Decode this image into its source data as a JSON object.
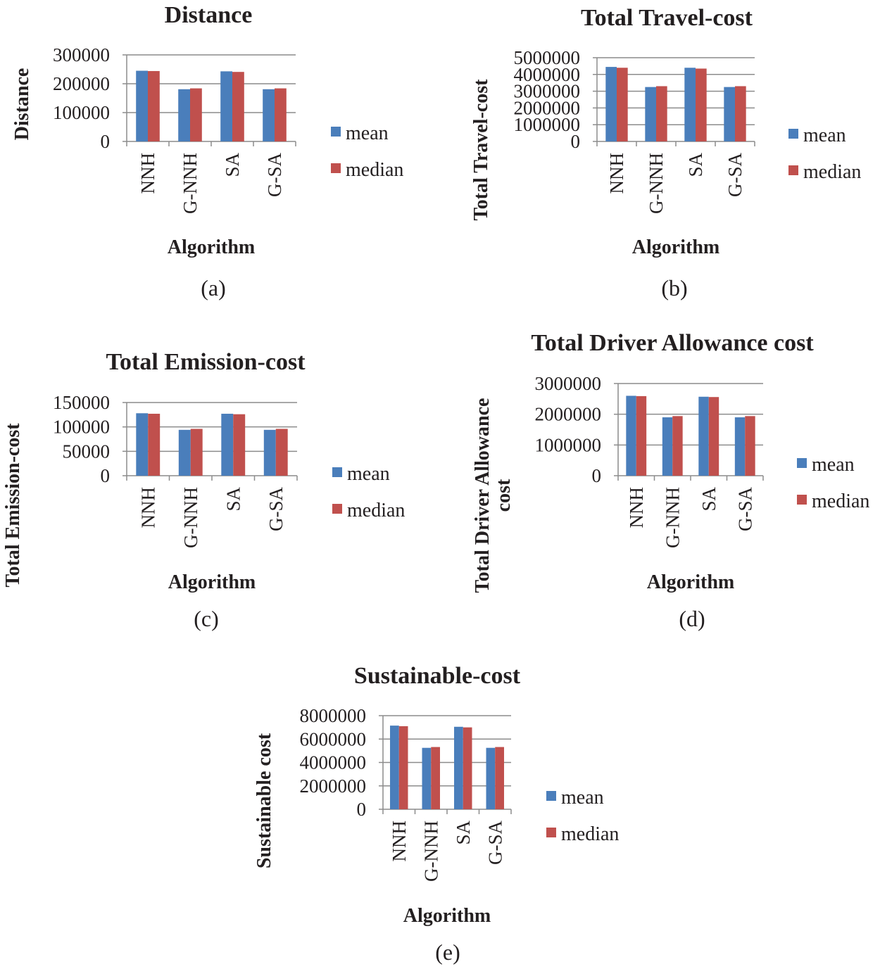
{
  "figure": {
    "legend_labels": [
      "mean",
      "median"
    ],
    "series_colors": [
      "#4a7ebb",
      "#c0504d"
    ]
  },
  "chart_data": [
    {
      "type": "bar",
      "id": "a",
      "title": "Distance",
      "xlabel": "Algorithm",
      "ylabel": [
        "Distance"
      ],
      "caption": "(a)",
      "categories": [
        "NNH",
        "G-NNH",
        "SA",
        "G-SA"
      ],
      "yticks": [
        0,
        100000,
        200000,
        300000
      ],
      "ylim": [
        0,
        300000
      ],
      "series": [
        {
          "name": "mean",
          "values": [
            245000,
            181000,
            243000,
            181000
          ]
        },
        {
          "name": "median",
          "values": [
            244000,
            184000,
            241000,
            184000
          ]
        }
      ]
    },
    {
      "type": "bar",
      "id": "b",
      "title": "Total Travel-cost",
      "xlabel": "Algorithm",
      "ylabel": [
        "Total Travel-cost"
      ],
      "caption": "(b)",
      "categories": [
        "NNH",
        "G-NNH",
        "SA",
        "G-SA"
      ],
      "yticks": [
        0,
        1000000,
        2000000,
        3000000,
        4000000,
        5000000
      ],
      "ylim": [
        0,
        5000000
      ],
      "series": [
        {
          "name": "mean",
          "values": [
            4450000,
            3250000,
            4400000,
            3250000
          ]
        },
        {
          "name": "median",
          "values": [
            4400000,
            3300000,
            4350000,
            3300000
          ]
        }
      ]
    },
    {
      "type": "bar",
      "id": "c",
      "title": "Total Emission-cost",
      "xlabel": "Algorithm",
      "ylabel": [
        "Total Emission-cost"
      ],
      "caption": "(c)",
      "categories": [
        "NNH",
        "G-NNH",
        "SA",
        "G-SA"
      ],
      "yticks": [
        0,
        50000,
        100000,
        150000
      ],
      "ylim": [
        0,
        150000
      ],
      "series": [
        {
          "name": "mean",
          "values": [
            128000,
            94000,
            127000,
            94000
          ]
        },
        {
          "name": "median",
          "values": [
            127000,
            96000,
            126000,
            96000
          ]
        }
      ]
    },
    {
      "type": "bar",
      "id": "d",
      "title": "Total Driver Allowance cost",
      "xlabel": "Algorithm",
      "ylabel": [
        "Total Driver Allowance",
        "cost"
      ],
      "caption": "(d)",
      "categories": [
        "NNH",
        "G-NNH",
        "SA",
        "G-SA"
      ],
      "yticks": [
        0,
        1000000,
        2000000,
        3000000
      ],
      "ylim": [
        0,
        3000000
      ],
      "series": [
        {
          "name": "mean",
          "values": [
            2600000,
            1900000,
            2570000,
            1900000
          ]
        },
        {
          "name": "median",
          "values": [
            2590000,
            1940000,
            2560000,
            1940000
          ]
        }
      ]
    },
    {
      "type": "bar",
      "id": "e",
      "title": "Sustainable-cost",
      "xlabel": "Algorithm",
      "ylabel": [
        "Sustainable cost"
      ],
      "caption": "(e)",
      "categories": [
        "NNH",
        "G-NNH",
        "SA",
        "G-SA"
      ],
      "yticks": [
        0,
        2000000,
        4000000,
        6000000,
        8000000
      ],
      "ylim": [
        0,
        8000000
      ],
      "series": [
        {
          "name": "mean",
          "values": [
            7150000,
            5250000,
            7050000,
            5250000
          ]
        },
        {
          "name": "median",
          "values": [
            7100000,
            5320000,
            7000000,
            5320000
          ]
        }
      ]
    }
  ]
}
